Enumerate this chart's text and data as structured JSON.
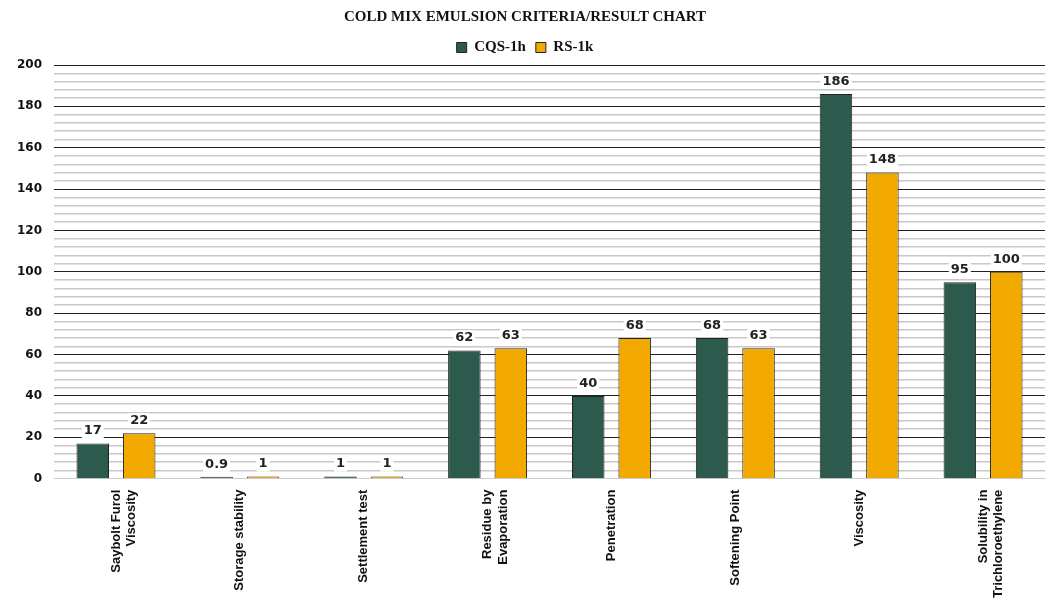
{
  "chart_data": {
    "type": "bar",
    "title": "COLD MIX EMULSION CRITERIA/RESULT CHART",
    "categories": [
      "Saybolt Furol Viscosity",
      "Storage stability",
      "Settlement test",
      "Residue by Evaporation",
      "Penetration",
      "Softening Point",
      "Viscosity",
      "Solubility in Trichloroethylene"
    ],
    "series": [
      {
        "name": "CQS-1h",
        "color": "#2c5a4c",
        "values": [
          17,
          0.9,
          1,
          62,
          40,
          68,
          186,
          95
        ]
      },
      {
        "name": "RS-1k",
        "color": "#f2a900",
        "values": [
          22,
          1,
          1,
          63,
          68,
          63,
          148,
          100
        ]
      }
    ],
    "ylim": [
      0,
      200
    ],
    "yticks": [
      0,
      {
        "value": 4,
        "label": null
      },
      {
        "value": 8,
        "label": null
      },
      {
        "value": 12,
        "label": null
      },
      {
        "value": 16,
        "label": null
      },
      20,
      {
        "value": 24,
        "label": null
      },
      {
        "value": 28,
        "label": null
      },
      {
        "value": 32,
        "label": null
      },
      {
        "value": 36,
        "label": null
      },
      40,
      {
        "value": 44,
        "label": null
      },
      {
        "value": 48,
        "label": null
      },
      {
        "value": 52,
        "label": null
      },
      {
        "value": 56,
        "label": null
      },
      60,
      {
        "value": 64,
        "label": null
      },
      {
        "value": 68,
        "label": null
      },
      {
        "value": 72,
        "label": null
      },
      {
        "value": 76,
        "label": null
      },
      80,
      {
        "value": 84,
        "label": null
      },
      {
        "value": 88,
        "label": null
      },
      {
        "value": 92,
        "label": null
      },
      {
        "value": 96,
        "label": null
      },
      100,
      {
        "value": 104,
        "label": null
      },
      {
        "value": 108,
        "label": null
      },
      {
        "value": 112,
        "label": null
      },
      {
        "value": 116,
        "label": null
      },
      120,
      {
        "value": 124,
        "label": null
      },
      {
        "value": 128,
        "label": null
      },
      {
        "value": 132,
        "label": null
      },
      {
        "value": 136,
        "label": null
      },
      140,
      {
        "value": 144,
        "label": null
      },
      {
        "value": 148,
        "label": null
      },
      {
        "value": 152,
        "label": null
      },
      {
        "value": 156,
        "label": null
      },
      160,
      {
        "value": 164,
        "label": null
      },
      {
        "value": 168,
        "label": null
      },
      {
        "value": 172,
        "label": null
      },
      {
        "value": 176,
        "label": null
      },
      180,
      {
        "value": 184,
        "label": null
      },
      {
        "value": 188,
        "label": null
      },
      {
        "value": 192,
        "label": null
      },
      {
        "value": 196,
        "label": null
      },
      200
    ],
    "grid": "y",
    "legend": "top",
    "data_labels": true
  }
}
